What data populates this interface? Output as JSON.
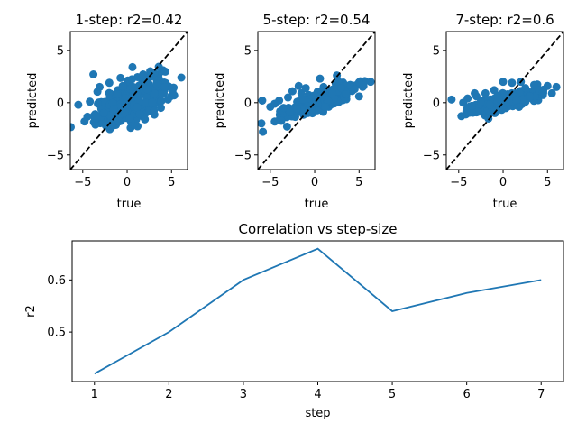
{
  "chart_data": [
    {
      "type": "scatter",
      "title": "1-step: r2=0.42",
      "xlabel": "true",
      "ylabel": "predicted",
      "xlim": [
        -6.4,
        6.8
      ],
      "ylim": [
        -6.4,
        6.8
      ],
      "xticks": [
        -5,
        0,
        5
      ],
      "yticks": [
        -5,
        0,
        5
      ],
      "reference_line": "y = x (dashed black)",
      "color": "#1f77b4",
      "point_cloud": {
        "n": 320,
        "x_center": 0.3,
        "x_spread": 1.9,
        "slope": 0.42,
        "noise": 0.9
      },
      "points": [
        [
          -5.5,
          -0.2
        ],
        [
          -4.8,
          -1.8
        ],
        [
          -4.2,
          0.1
        ],
        [
          -3.8,
          2.7
        ],
        [
          -3.5,
          -1.2
        ],
        [
          -3.1,
          1.5
        ],
        [
          -2.4,
          -2.2
        ],
        [
          -2.0,
          1.9
        ],
        [
          -1.5,
          -0.6
        ],
        [
          -1.1,
          0.8
        ],
        [
          -0.5,
          1.6
        ],
        [
          0.0,
          0.2
        ],
        [
          0.3,
          -1.5
        ],
        [
          0.6,
          3.4
        ],
        [
          1.1,
          0.9
        ],
        [
          1.4,
          -1.1
        ],
        [
          1.8,
          2.7
        ],
        [
          2.2,
          1.3
        ],
        [
          2.6,
          3.0
        ],
        [
          3.0,
          -0.8
        ],
        [
          3.3,
          1.8
        ],
        [
          3.8,
          -0.5
        ],
        [
          4.2,
          1.5
        ],
        [
          4.6,
          0.3
        ],
        [
          5.1,
          1.1
        ],
        [
          6.1,
          2.4
        ],
        [
          5.3,
          0.7
        ],
        [
          -3.3,
          -0.1
        ],
        [
          -0.9,
          -1.8
        ],
        [
          2.0,
          -1.6
        ]
      ]
    },
    {
      "type": "scatter",
      "title": "5-step: r2=0.54",
      "xlabel": "true",
      "ylabel": "predicted",
      "xlim": [
        -6.4,
        6.8
      ],
      "ylim": [
        -6.4,
        6.8
      ],
      "xticks": [
        -5,
        0,
        5
      ],
      "yticks": [
        -5,
        0,
        5
      ],
      "reference_line": "y = x (dashed black)",
      "color": "#1f77b4",
      "point_cloud": {
        "n": 320,
        "x_center": 0.3,
        "x_spread": 1.9,
        "slope": 0.3,
        "noise": 0.45
      },
      "points": [
        [
          -5.9,
          0.2
        ],
        [
          -5.0,
          -0.4
        ],
        [
          -4.5,
          -0.1
        ],
        [
          -4.0,
          0.2
        ],
        [
          -3.5,
          -0.5
        ],
        [
          -3.0,
          0.5
        ],
        [
          -2.5,
          1.1
        ],
        [
          -2.0,
          -0.6
        ],
        [
          -1.5,
          0.9
        ],
        [
          -1.0,
          1.4
        ],
        [
          -0.5,
          -0.3
        ],
        [
          0.0,
          0.7
        ],
        [
          0.6,
          2.3
        ],
        [
          1.0,
          1.5
        ],
        [
          1.5,
          0.2
        ],
        [
          2.0,
          0.9
        ],
        [
          2.5,
          2.6
        ],
        [
          3.0,
          1.4
        ],
        [
          3.5,
          0.8
        ],
        [
          4.0,
          1.7
        ],
        [
          4.5,
          1.3
        ],
        [
          5.0,
          0.6
        ],
        [
          6.3,
          2.0
        ],
        [
          5.5,
          1.6
        ],
        [
          -2.8,
          -0.9
        ],
        [
          1.2,
          -0.4
        ],
        [
          -1.8,
          1.6
        ]
      ]
    },
    {
      "type": "scatter",
      "title": "7-step: r2=0.6",
      "xlabel": "true",
      "ylabel": "predicted",
      "xlim": [
        -6.4,
        6.8
      ],
      "ylim": [
        -6.4,
        6.8
      ],
      "xticks": [
        -5,
        0,
        5
      ],
      "yticks": [
        -5,
        0,
        5
      ],
      "reference_line": "y = x (dashed black)",
      "color": "#1f77b4",
      "point_cloud": {
        "n": 320,
        "x_center": 0.3,
        "x_spread": 1.9,
        "slope": 0.22,
        "noise": 0.35
      },
      "points": [
        [
          -5.8,
          0.3
        ],
        [
          -4.5,
          0.0
        ],
        [
          -4.0,
          0.4
        ],
        [
          -3.5,
          -0.3
        ],
        [
          -3.0,
          0.6
        ],
        [
          -2.5,
          0.1
        ],
        [
          -2.0,
          0.9
        ],
        [
          -1.5,
          -0.2
        ],
        [
          -1.0,
          1.2
        ],
        [
          -0.5,
          0.4
        ],
        [
          0.0,
          2.0
        ],
        [
          0.5,
          0.8
        ],
        [
          1.0,
          1.9
        ],
        [
          1.5,
          0.2
        ],
        [
          2.0,
          2.0
        ],
        [
          2.5,
          1.4
        ],
        [
          3.0,
          0.6
        ],
        [
          3.5,
          1.7
        ],
        [
          4.0,
          1.2
        ],
        [
          4.5,
          1.0
        ],
        [
          5.0,
          1.6
        ],
        [
          6.0,
          1.5
        ],
        [
          5.5,
          0.9
        ],
        [
          -3.2,
          0.9
        ],
        [
          1.8,
          -0.4
        ]
      ]
    },
    {
      "type": "line",
      "title": "Correlation vs step-size",
      "xlabel": "step",
      "ylabel": "r2",
      "x": [
        1,
        2,
        3,
        4,
        5,
        6,
        7
      ],
      "series": [
        {
          "values": [
            0.42,
            0.5,
            0.6,
            0.66,
            0.54,
            0.575,
            0.6
          ],
          "color": "#1f77b4"
        }
      ],
      "xlim": [
        0.7,
        7.3
      ],
      "ylim": [
        0.405,
        0.675
      ],
      "xticks": [
        1,
        2,
        3,
        4,
        5,
        6,
        7
      ],
      "yticks": [
        0.5,
        0.6
      ],
      "ytick_labels": [
        "0.5",
        "0.6"
      ]
    }
  ]
}
